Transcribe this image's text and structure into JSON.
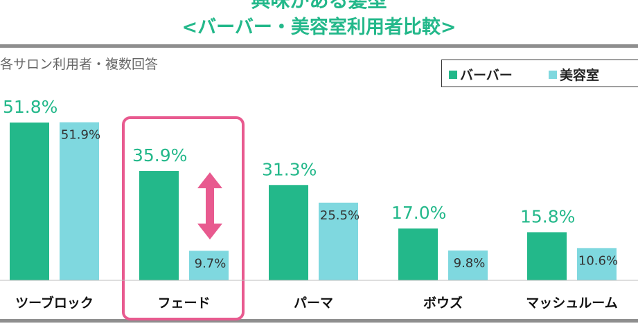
{
  "header": {
    "title_line1": "興味がある髪型",
    "title_line2": "<バーバー・美容室利用者比較>"
  },
  "note": "各サロン利用者・複数回答",
  "legend": {
    "barber": "バーバー",
    "salon": "美容室"
  },
  "colors": {
    "barber": "#23b88a",
    "salon": "#7fd8df",
    "highlight": "#e85a8f",
    "title": "#23b88a"
  },
  "chart_data": {
    "type": "bar",
    "categories": [
      "ツーブロック",
      "フェード",
      "パーマ",
      "ボウズ",
      "マッシュルーム"
    ],
    "series": [
      {
        "name": "バーバー",
        "values": [
          51.8,
          35.9,
          31.3,
          17.0,
          15.8
        ],
        "labels": [
          "51.8%",
          "35.9%",
          "31.3%",
          "17.0%",
          "15.8%"
        ]
      },
      {
        "name": "美容室",
        "values": [
          51.9,
          9.7,
          25.5,
          9.8,
          10.6
        ],
        "labels": [
          "51.9%",
          "9.7%",
          "25.5%",
          "9.8%",
          "10.6%"
        ]
      }
    ],
    "unit": "%",
    "highlighted_category": "フェード"
  }
}
